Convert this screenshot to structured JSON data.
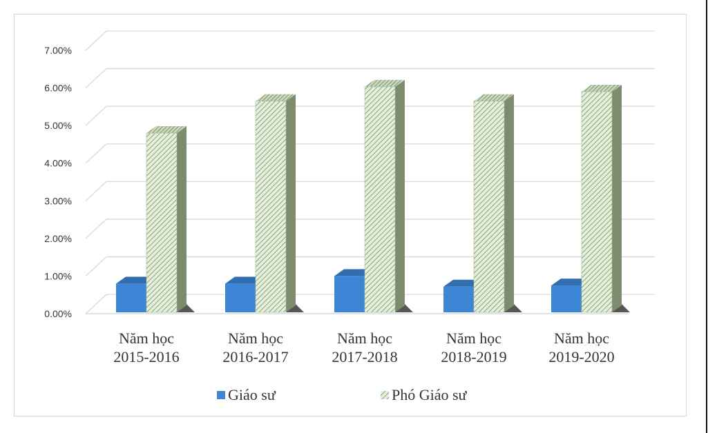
{
  "chart_data": {
    "type": "bar",
    "categories": [
      [
        "Năm học",
        "2015-2016"
      ],
      [
        "Năm học",
        "2016-2017"
      ],
      [
        "Năm học",
        "2017-2018"
      ],
      [
        "Năm học",
        "2018-2019"
      ],
      [
        "Năm học",
        "2019-2020"
      ]
    ],
    "series": [
      {
        "name": "Giáo sư",
        "values": [
          0.008,
          0.008,
          0.01,
          0.0072,
          0.0075
        ],
        "color": "#3d86d6",
        "pattern": "solid"
      },
      {
        "name": "Phó Giáo sư",
        "values": [
          0.048,
          0.0565,
          0.0603,
          0.0565,
          0.059
        ],
        "color": "#dde9d3",
        "pattern": "diagonal-hatch"
      }
    ],
    "yticks": [
      "0.00%",
      "1.00%",
      "2.00%",
      "3.00%",
      "4.00%",
      "5.00%",
      "6.00%",
      "7.00%"
    ],
    "ylim": [
      0,
      0.07
    ],
    "grid": true,
    "legend": "bottom",
    "projection": "3d-column"
  }
}
